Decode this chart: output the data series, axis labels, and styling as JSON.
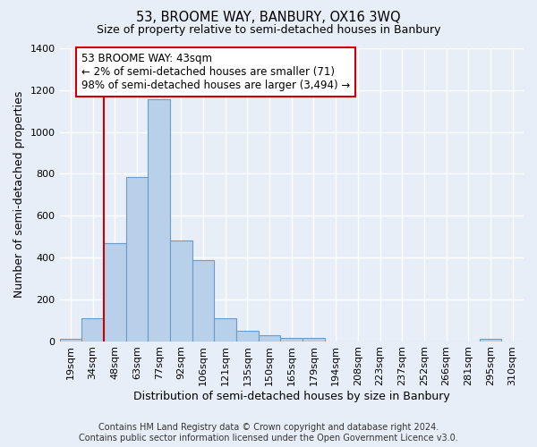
{
  "title": "53, BROOME WAY, BANBURY, OX16 3WQ",
  "subtitle": "Size of property relative to semi-detached houses in Banbury",
  "xlabel": "Distribution of semi-detached houses by size in Banbury",
  "ylabel": "Number of semi-detached properties",
  "footer_line1": "Contains HM Land Registry data © Crown copyright and database right 2024.",
  "footer_line2": "Contains public sector information licensed under the Open Government Licence v3.0.",
  "categories": [
    "19sqm",
    "34sqm",
    "48sqm",
    "63sqm",
    "77sqm",
    "92sqm",
    "106sqm",
    "121sqm",
    "135sqm",
    "150sqm",
    "165sqm",
    "179sqm",
    "194sqm",
    "208sqm",
    "223sqm",
    "237sqm",
    "252sqm",
    "266sqm",
    "281sqm",
    "295sqm",
    "310sqm"
  ],
  "values": [
    10,
    110,
    470,
    785,
    1155,
    480,
    385,
    110,
    50,
    28,
    17,
    15,
    0,
    0,
    0,
    0,
    0,
    0,
    0,
    10,
    0
  ],
  "bar_color": "#b8d0ea",
  "bar_edge_color": "#6a9cc8",
  "property_line_x": 1.5,
  "property_size": "43sqm",
  "pct_smaller": 2,
  "num_smaller": 71,
  "pct_larger": 98,
  "num_larger": 3494,
  "annotation_box_color": "#cc0000",
  "property_line_color": "#cc0000",
  "ylim": [
    0,
    1400
  ],
  "yticks": [
    0,
    200,
    400,
    600,
    800,
    1000,
    1200,
    1400
  ],
  "background_color": "#e8eef8",
  "grid_color": "#ffffff",
  "title_fontsize": 10.5,
  "subtitle_fontsize": 9,
  "axis_label_fontsize": 9,
  "tick_fontsize": 8,
  "footer_fontsize": 7,
  "annotation_fontsize": 8.5
}
